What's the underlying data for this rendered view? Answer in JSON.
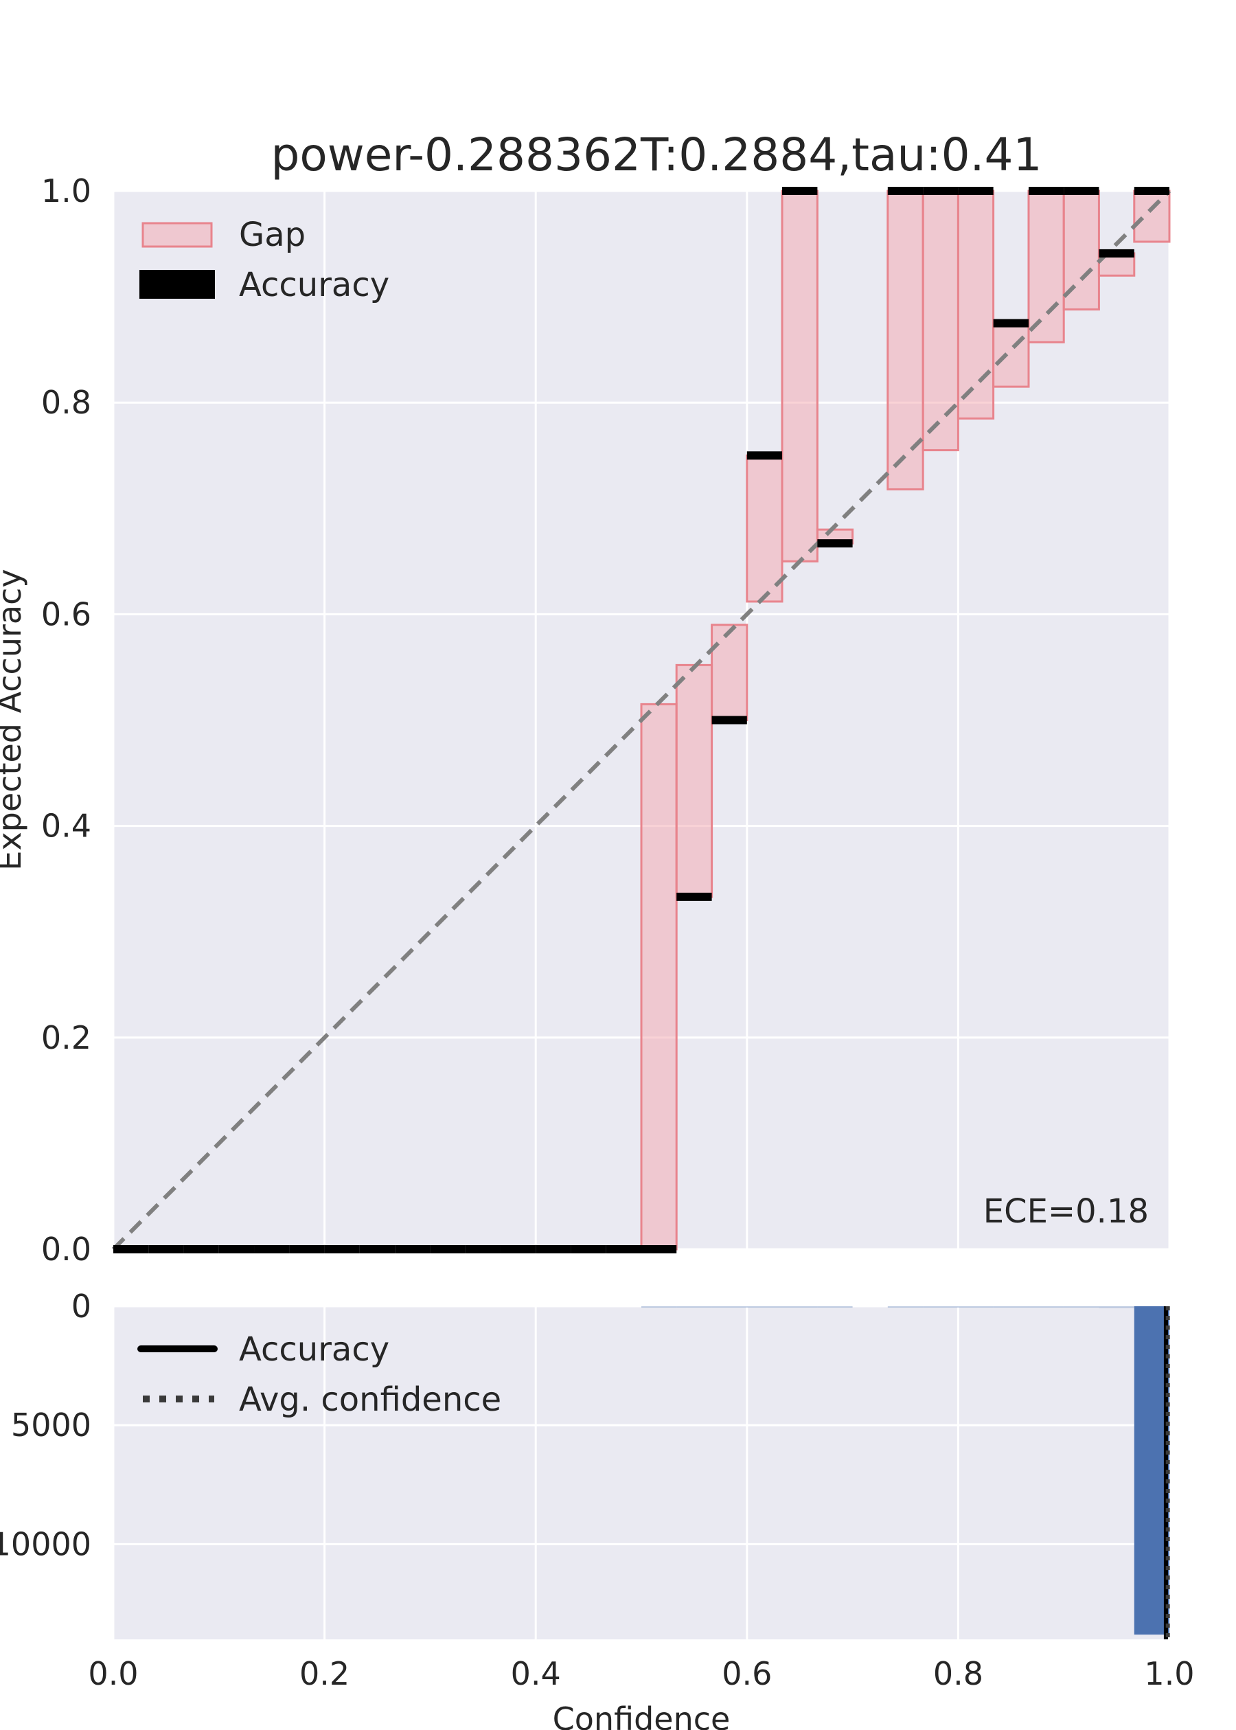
{
  "title": "power-0.288362T:0.2884,tau:0.41",
  "ece_label": "ECE=0.18",
  "colors": {
    "panel_bg": "#eaeaf2",
    "grid": "#ffffff",
    "gap_fill": "#f4a6ad",
    "gap_edge": "#e8848d",
    "accuracy": "#000000",
    "diagonal": "#808080",
    "hist_bar": "#4c72b0",
    "avg_line": "#3a3a3a"
  },
  "chart_data": [
    {
      "type": "bar",
      "name": "reliability-diagram",
      "ylabel": "Expected Accuracy",
      "xlim": [
        0,
        1
      ],
      "ylim": [
        0,
        1
      ],
      "xticks": [
        "0.0",
        "0.2",
        "0.4",
        "0.6",
        "0.8",
        "1.0"
      ],
      "yticks": [
        "0.0",
        "0.2",
        "0.4",
        "0.6",
        "0.8",
        "1.0"
      ],
      "grid": true,
      "legend_position": "upper-left",
      "legend": [
        "Gap",
        "Accuracy"
      ],
      "bin_edges": [
        0.0,
        0.0333,
        0.0667,
        0.1,
        0.1333,
        0.1667,
        0.2,
        0.2333,
        0.2667,
        0.3,
        0.3333,
        0.3667,
        0.4,
        0.4333,
        0.4667,
        0.5,
        0.5333,
        0.5667,
        0.6,
        0.6333,
        0.6667,
        0.7,
        0.7333,
        0.7667,
        0.8,
        0.8333,
        0.8667,
        0.9,
        0.9333,
        0.9667,
        1.0
      ],
      "accuracy": [
        0,
        0,
        0,
        0,
        0,
        0,
        0,
        0,
        0,
        0,
        0,
        0,
        0,
        0,
        0,
        0,
        0.333,
        0.5,
        0.75,
        1.0,
        0.667,
        null,
        1.0,
        1.0,
        1.0,
        0.875,
        1.0,
        1.0,
        0.941,
        1.0
      ],
      "confidence": [
        null,
        null,
        null,
        null,
        null,
        null,
        null,
        null,
        null,
        null,
        null,
        null,
        null,
        null,
        null,
        0.515,
        0.552,
        0.59,
        0.612,
        0.65,
        0.68,
        null,
        0.718,
        0.755,
        0.785,
        0.815,
        0.857,
        0.888,
        0.92,
        0.952
      ]
    },
    {
      "type": "bar",
      "name": "confidence-histogram",
      "xlabel": "Confidence",
      "xlim": [
        0,
        1
      ],
      "ylim": [
        0,
        14000
      ],
      "y_inverted": true,
      "xticks": [
        "0.0",
        "0.2",
        "0.4",
        "0.6",
        "0.8",
        "1.0"
      ],
      "yticks": [
        "0",
        "5000",
        "10000"
      ],
      "grid": true,
      "legend_position": "upper-left",
      "legend": [
        "Accuracy",
        "Avg. confidence"
      ],
      "counts": [
        0,
        0,
        0,
        0,
        0,
        0,
        0,
        0,
        0,
        0,
        0,
        0,
        0,
        0,
        0,
        2,
        3,
        4,
        4,
        6,
        6,
        0,
        8,
        12,
        20,
        16,
        30,
        40,
        70,
        13800
      ],
      "accuracy_line": 0.9967,
      "avg_confidence": 0.9985
    }
  ]
}
